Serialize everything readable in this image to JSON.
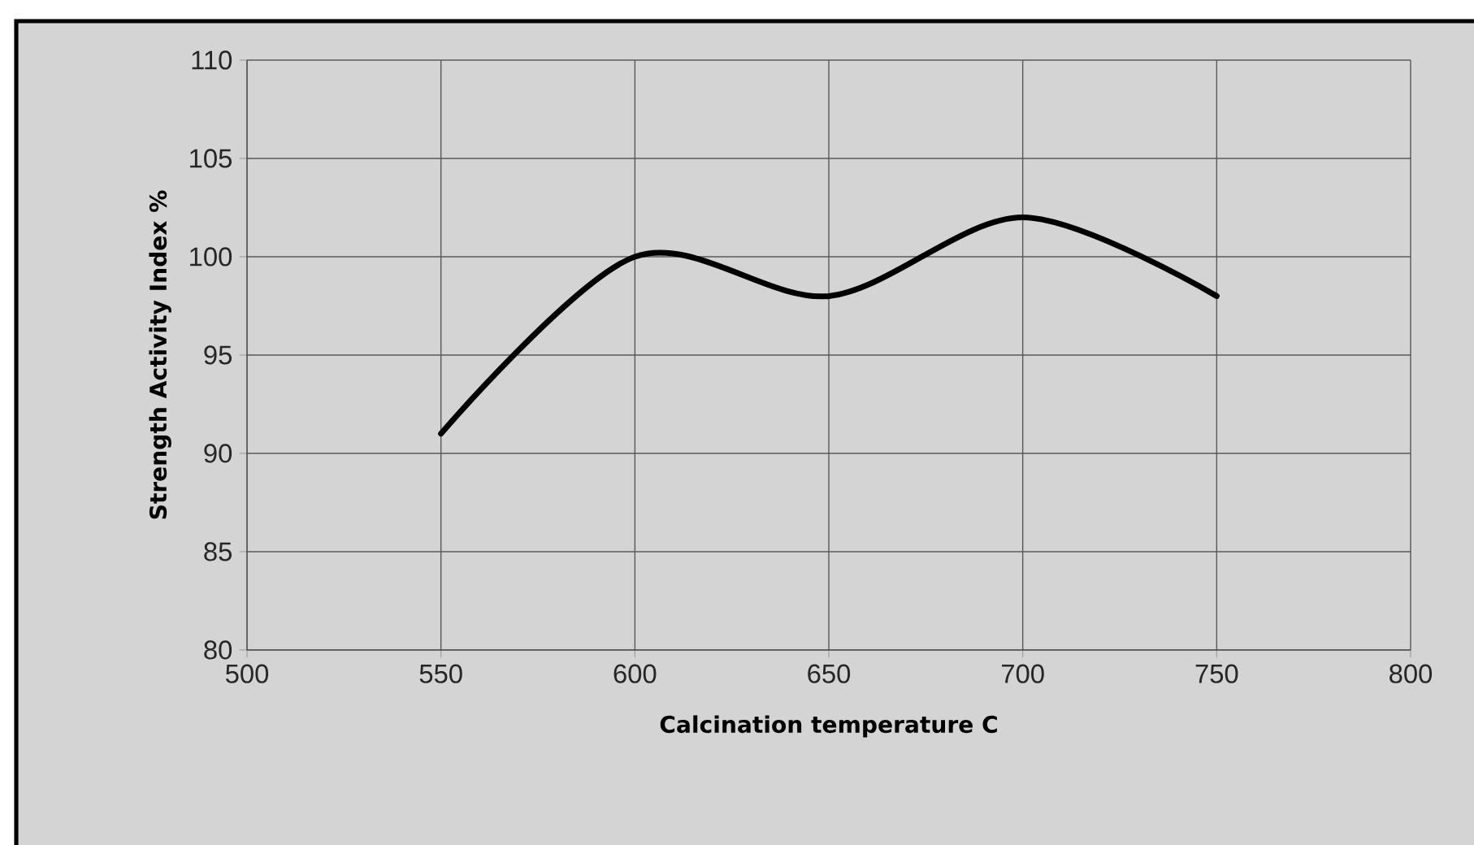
{
  "chart_data": {
    "type": "line",
    "xlabel": "Calcination temperature C",
    "ylabel": "Strength  Activity Index %",
    "x": [
      550,
      600,
      650,
      700,
      750
    ],
    "series": [
      {
        "color": "#000000",
        "values": [
          91,
          100,
          98,
          102,
          98
        ]
      }
    ],
    "xlim": [
      500,
      800
    ],
    "xticks": [
      500,
      550,
      600,
      650,
      700,
      750,
      800
    ],
    "ylim": [
      80,
      110
    ],
    "yticks": [
      80,
      85,
      90,
      95,
      100,
      105,
      110
    ],
    "grid": true,
    "marker": "none",
    "line_style": "solid"
  }
}
